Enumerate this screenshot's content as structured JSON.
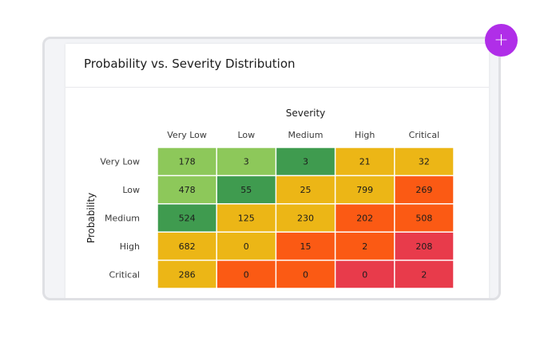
{
  "card": {
    "title": "Probability vs. Severity Distribution"
  },
  "add_button": {
    "icon": "plus-icon",
    "label": "+"
  },
  "colors": {
    "light_green": "#8dc85a",
    "dark_green": "#3f9b4f",
    "amber": "#ecb616",
    "orange": "#fb5a14",
    "red": "#e83b4b",
    "accent": "#b02ee8"
  },
  "chart_data": {
    "type": "heatmap",
    "xlabel": "Severity",
    "ylabel": "Probability",
    "x_categories": [
      "Very Low",
      "Low",
      "Medium",
      "High",
      "Critical"
    ],
    "y_categories": [
      "Very Low",
      "Low",
      "Medium",
      "High",
      "Critical"
    ],
    "values": [
      [
        178,
        3,
        3,
        21,
        32
      ],
      [
        478,
        55,
        25,
        799,
        269
      ],
      [
        524,
        125,
        230,
        202,
        508
      ],
      [
        682,
        0,
        15,
        2,
        208
      ],
      [
        286,
        0,
        0,
        0,
        2
      ]
    ],
    "cell_colors": [
      [
        "#8dc85a",
        "#8dc85a",
        "#3f9b4f",
        "#ecb616",
        "#ecb616"
      ],
      [
        "#8dc85a",
        "#3f9b4f",
        "#ecb616",
        "#ecb616",
        "#fb5a14"
      ],
      [
        "#3f9b4f",
        "#ecb616",
        "#ecb616",
        "#fb5a14",
        "#fb5a14"
      ],
      [
        "#ecb616",
        "#ecb616",
        "#fb5a14",
        "#fb5a14",
        "#e83b4b"
      ],
      [
        "#ecb616",
        "#fb5a14",
        "#fb5a14",
        "#e83b4b",
        "#e83b4b"
      ]
    ],
    "legend": "none"
  }
}
